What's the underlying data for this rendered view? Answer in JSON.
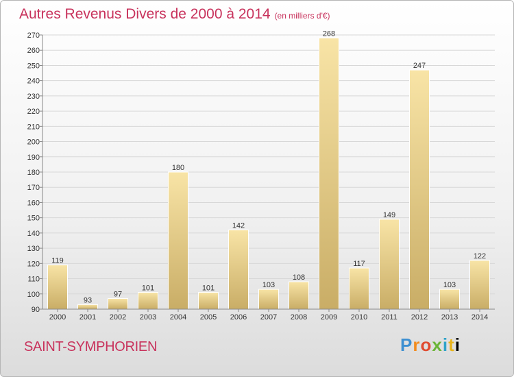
{
  "title": "Autres Revenus Divers de 2000 à 2014",
  "unit": "(en milliers d'€)",
  "place": "SAINT-SYMPHORIEN",
  "brand": [
    "P",
    "r",
    "o",
    "x",
    "i",
    "t",
    "i"
  ],
  "colors": {
    "title": "#c8325c",
    "bar_light": "#f8e4a6",
    "bar_dark": "#c9ad66",
    "grid": "#d8d8d8"
  },
  "chart_data": {
    "type": "bar",
    "categories": [
      "2000",
      "2001",
      "2002",
      "2003",
      "2004",
      "2005",
      "2006",
      "2007",
      "2008",
      "2009",
      "2010",
      "2011",
      "2012",
      "2013",
      "2014"
    ],
    "values": [
      119,
      93,
      97,
      101,
      180,
      101,
      142,
      103,
      108,
      268,
      117,
      149,
      247,
      103,
      122
    ],
    "ylim": [
      90,
      270
    ],
    "yticks": [
      90,
      100,
      110,
      120,
      130,
      140,
      150,
      160,
      170,
      180,
      190,
      200,
      210,
      220,
      230,
      240,
      250,
      260,
      270
    ],
    "title": "Autres Revenus Divers de 2000 à 2014",
    "xlabel": "",
    "ylabel": "",
    "grid": true,
    "value_labels": true
  }
}
